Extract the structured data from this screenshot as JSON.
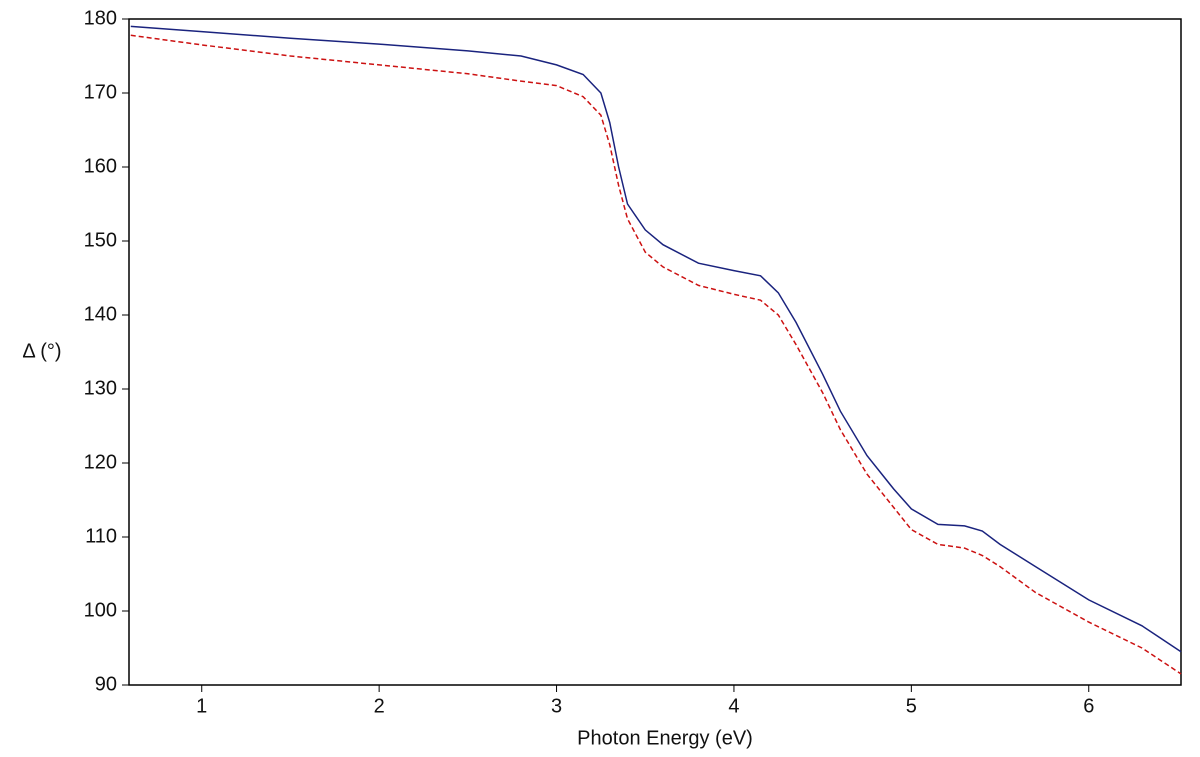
{
  "chart_data": {
    "type": "line",
    "x_label": "Photon Energy (eV)",
    "y_label": "Δ (°)",
    "xlim": [
      0.59,
      6.52
    ],
    "ylim": [
      90,
      180
    ],
    "xticks": [
      1,
      2,
      3,
      4,
      5,
      6
    ],
    "yticks": [
      90,
      100,
      110,
      120,
      130,
      140,
      150,
      160,
      170,
      180
    ],
    "series": [
      {
        "color": "#1a237e",
        "dash": "solid",
        "x": [
          0.6,
          1.0,
          1.5,
          2.0,
          2.5,
          2.8,
          3.0,
          3.15,
          3.25,
          3.3,
          3.35,
          3.4,
          3.5,
          3.6,
          3.8,
          4.0,
          4.15,
          4.25,
          4.35,
          4.5,
          4.6,
          4.75,
          4.9,
          5.0,
          5.15,
          5.3,
          5.4,
          5.5,
          5.7,
          6.0,
          6.3,
          6.52
        ],
        "values": [
          179,
          178.3,
          177.4,
          176.6,
          175.7,
          175,
          173.8,
          172.5,
          170,
          166,
          160,
          155,
          151.5,
          149.5,
          147,
          146,
          145.3,
          143,
          139,
          132,
          127,
          121,
          116.5,
          113.8,
          111.7,
          111.5,
          110.8,
          109,
          106,
          101.5,
          98,
          94.5
        ]
      },
      {
        "color": "#cc1111",
        "dash": "dashed",
        "x": [
          0.6,
          1.0,
          1.5,
          2.0,
          2.5,
          2.8,
          3.0,
          3.15,
          3.25,
          3.3,
          3.35,
          3.4,
          3.5,
          3.6,
          3.8,
          4.0,
          4.15,
          4.25,
          4.35,
          4.5,
          4.6,
          4.75,
          4.9,
          5.0,
          5.15,
          5.3,
          5.4,
          5.5,
          5.7,
          6.0,
          6.3,
          6.52
        ],
        "values": [
          177.8,
          176.5,
          175,
          173.8,
          172.6,
          171.6,
          171,
          169.5,
          167,
          163,
          157.5,
          153,
          148.5,
          146.5,
          144,
          142.8,
          142,
          140,
          136,
          129.5,
          124.5,
          118.5,
          114,
          111,
          109,
          108.5,
          107.5,
          106,
          102.5,
          98.5,
          95,
          91.5
        ]
      }
    ]
  }
}
